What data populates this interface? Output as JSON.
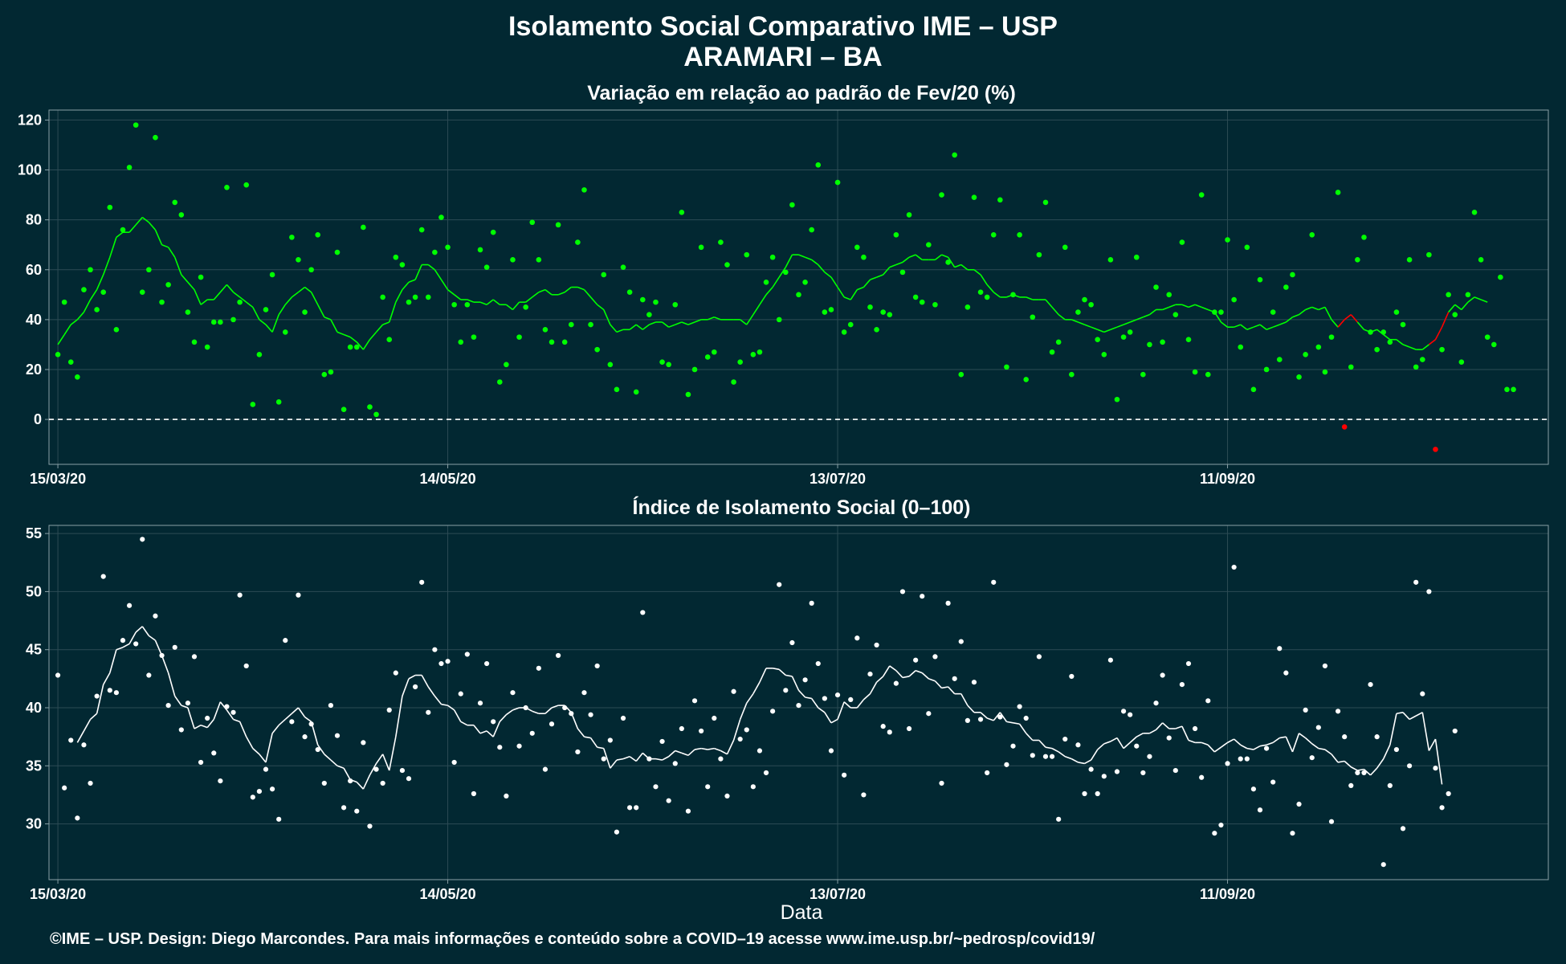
{
  "header": {
    "title": "Isolamento Social Comparativo IME – USP",
    "location": "ARAMARI – BA"
  },
  "footer": {
    "xlabel": "Data",
    "caption": "©IME – USP. Design: Diego Marcondes. Para mais informações e conteúdo sobre a COVID–19 acesse www.ime.usp.br/~pedrosp/covid19/"
  },
  "colors": {
    "background": "#022832",
    "variation_points": "#00ff00",
    "variation_negative": "#ff0000",
    "index_points": "#ffffff",
    "grid": "#2c4b54",
    "frame": "#8aa0a6"
  },
  "chart_data": [
    {
      "type": "scatter",
      "title": "Variação em relação ao padrão de Fev/20 (%)",
      "x_start": "2020-03-15",
      "x_end": "2020-10-29",
      "xticks": [
        "15/03/20",
        "14/05/20",
        "13/07/20",
        "11/09/20"
      ],
      "yticks": [
        0,
        20,
        40,
        60,
        80,
        100,
        120
      ],
      "ylim": [
        -18,
        124
      ],
      "reference_line": 0,
      "grid": true,
      "series": [
        {
          "values": [
            26,
            47,
            23,
            17,
            52,
            60,
            44,
            51,
            85,
            36,
            76,
            101,
            118,
            51,
            60,
            113,
            47,
            54,
            87,
            82,
            43,
            31,
            57,
            29,
            39,
            39,
            93,
            40,
            47,
            94,
            6,
            26,
            44,
            58,
            7,
            35,
            73,
            64,
            43,
            60,
            74,
            18,
            19,
            67,
            4,
            29,
            29,
            77,
            5,
            2,
            49,
            32,
            65,
            62,
            47,
            49,
            76,
            49,
            67,
            81,
            69,
            46,
            31,
            46,
            33,
            68,
            61,
            75,
            15,
            22,
            64,
            33,
            45,
            79,
            64,
            36,
            31,
            78,
            31,
            38,
            71,
            92,
            38,
            28,
            58,
            22,
            12,
            61,
            51,
            11,
            48,
            42,
            47,
            23,
            22,
            46,
            83,
            10,
            20,
            69,
            25,
            27,
            71,
            62,
            15,
            23,
            66,
            26,
            27,
            55,
            65,
            40,
            59,
            86,
            50,
            55,
            76,
            102,
            43,
            44,
            95,
            35,
            38,
            69,
            65,
            45,
            36,
            43,
            42,
            74,
            59,
            82,
            49,
            47,
            70,
            46,
            90,
            63,
            106,
            18,
            45,
            89,
            51,
            49,
            74,
            88,
            21,
            50,
            74,
            16,
            41,
            66,
            87,
            27,
            31,
            69,
            18,
            43,
            48,
            46,
            32,
            26,
            64,
            8,
            33,
            35,
            65,
            18,
            30,
            53,
            31,
            50,
            42,
            71,
            32,
            19,
            90,
            18,
            43,
            43,
            72,
            48,
            29,
            69,
            12,
            56,
            20,
            43,
            24,
            53,
            58,
            17,
            26,
            74,
            29,
            19,
            33,
            91,
            -3,
            21,
            64,
            73,
            35,
            28,
            35,
            31,
            43,
            38,
            64,
            21,
            24,
            66,
            -12,
            28,
            50,
            42,
            23,
            50,
            83,
            64,
            33,
            30,
            57,
            12
          ],
          "moving_average": [
            30,
            34,
            38,
            40,
            43,
            48,
            52,
            58,
            65,
            73,
            75,
            75,
            78,
            81,
            79,
            76,
            70,
            69,
            65,
            58,
            55,
            52,
            46,
            48,
            48,
            51,
            54,
            51,
            49,
            47,
            45,
            40,
            38,
            35,
            42,
            46,
            49,
            51,
            53,
            51,
            46,
            41,
            40,
            35,
            34,
            33,
            31,
            28,
            32,
            35,
            38,
            39,
            47,
            52,
            55,
            56,
            62,
            62,
            60,
            56,
            52,
            50,
            48,
            48,
            47,
            47,
            46,
            48,
            46,
            46,
            44,
            47,
            47,
            49,
            51,
            52,
            50,
            50,
            51,
            53,
            53,
            52,
            49,
            46,
            44,
            38,
            35,
            36,
            36,
            38,
            36,
            38,
            39,
            39,
            37,
            38,
            39,
            38,
            39,
            40,
            40,
            41,
            40,
            40,
            40,
            40,
            38,
            42,
            46,
            50,
            53,
            57,
            61,
            66,
            66,
            65,
            64,
            62,
            59,
            57,
            53,
            49,
            48,
            52,
            53,
            56,
            57,
            58,
            61,
            62,
            63,
            65,
            66,
            64,
            64,
            64,
            66,
            65,
            61,
            62,
            60,
            60,
            58,
            54,
            51,
            49,
            49,
            50,
            49,
            49,
            48,
            48,
            48,
            45,
            42,
            40,
            40,
            39,
            38,
            37,
            36,
            35,
            36,
            37,
            38,
            39,
            40,
            41,
            42,
            44,
            44,
            45,
            46,
            46,
            45,
            46,
            45,
            44,
            43,
            39,
            37,
            37,
            38,
            36,
            37,
            38,
            36,
            37,
            38,
            39,
            41,
            42,
            44,
            45,
            44,
            45,
            40,
            37,
            40,
            42,
            39,
            36,
            35,
            36,
            34,
            32,
            32,
            30,
            29,
            28,
            28,
            30,
            32,
            37,
            43,
            46,
            44,
            47,
            49,
            48,
            47
          ],
          "last_value": 12
        }
      ]
    },
    {
      "type": "scatter",
      "title": "Índice de Isolamento Social (0–100)",
      "x_start": "2020-03-15",
      "x_end": "2020-10-29",
      "xticks": [
        "15/03/20",
        "14/05/20",
        "13/07/20",
        "11/09/20"
      ],
      "yticks": [
        30,
        35,
        40,
        45,
        50,
        55
      ],
      "ylim": [
        25.2,
        55.7
      ],
      "grid": true,
      "series": [
        {
          "values": [
            42.8,
            33.1,
            37.2,
            30.5,
            36.8,
            33.5,
            41,
            51.3,
            41.5,
            41.3,
            45.8,
            48.8,
            45.5,
            54.5,
            42.8,
            47.9,
            44.5,
            40.2,
            45.2,
            38.1,
            40.4,
            44.4,
            35.3,
            39.1,
            36.1,
            33.7,
            40.1,
            39.6,
            49.7,
            43.6,
            32.3,
            32.8,
            34.7,
            33,
            30.4,
            45.8,
            38.8,
            49.7,
            37.5,
            38.6,
            36.4,
            33.5,
            40.2,
            37.6,
            31.4,
            33.7,
            31.1,
            37,
            29.8,
            34.7,
            33.5,
            39.8,
            43,
            34.6,
            33.9,
            41.8,
            50.8,
            39.6,
            45,
            43.8,
            44,
            35.3,
            41.2,
            44.6,
            32.6,
            40.4,
            43.8,
            38.8,
            36.6,
            32.4,
            41.3,
            36.7,
            40,
            37.8,
            43.4,
            34.7,
            38.6,
            44.5,
            40,
            39.5,
            36.2,
            41.3,
            39.4,
            43.6,
            35.6,
            37.2,
            29.3,
            39.1,
            31.4,
            31.4,
            48.2,
            35.6,
            33.2,
            37.1,
            32,
            35.2,
            38.2,
            31.1,
            40.6,
            38,
            33.2,
            39.1,
            35.6,
            32.4,
            41.4,
            37.3,
            38.1,
            33.2,
            36.3,
            34.4,
            39.7,
            50.6,
            41.5,
            45.6,
            40.2,
            42.4,
            49,
            43.8,
            40.8,
            36.3,
            41.1,
            34.2,
            40.7,
            46,
            32.5,
            42.9,
            45.4,
            38.4,
            37.9,
            42.1,
            50,
            38.2,
            44.1,
            49.6,
            39.5,
            44.4,
            33.5,
            49,
            42.5,
            45.7,
            38.9,
            42.2,
            39,
            34.4,
            50.8,
            39.2,
            35.1,
            36.7,
            40.1,
            39.1,
            35.9,
            44.4,
            35.8,
            35.8,
            30.4,
            37.3,
            42.7,
            36.8,
            32.6,
            34.7,
            32.6,
            34.1,
            44.1,
            34.5,
            39.7,
            39.4,
            36.7,
            34.4,
            35.8,
            40.4,
            42.8,
            37.4,
            34.6,
            42,
            43.8,
            38.2,
            34,
            40.6,
            29.2,
            29.9,
            35.2,
            52.1,
            35.6,
            35.6,
            33,
            31.2,
            36.5,
            33.6,
            45.1,
            43,
            29.2,
            31.7,
            39.8,
            35.7,
            38.3,
            43.6,
            30.2,
            39.7,
            37.5,
            33.3,
            34.4,
            34.4,
            42,
            37.5,
            26.5,
            33.3,
            36.4,
            29.6,
            35,
            50.8,
            41.2,
            50,
            34.8,
            31.4,
            32.6,
            38
          ],
          "moving_average": [
            null,
            null,
            null,
            37,
            38,
            39,
            39.5,
            42,
            43,
            45,
            45.2,
            45.5,
            46.5,
            47,
            46.2,
            45.8,
            44.5,
            43,
            41,
            40.2,
            40,
            38.2,
            38.5,
            38.3,
            39,
            40.5,
            39.8,
            39,
            38.8,
            37.5,
            36.5,
            36,
            35.3,
            37.8,
            38.5,
            39,
            39.5,
            40,
            39.2,
            38.8,
            36.8,
            36,
            35.5,
            35,
            34.8,
            33.8,
            33.6,
            33,
            34.2,
            35.2,
            36,
            34.6,
            37.5,
            41,
            42.5,
            42.8,
            42.8,
            41.8,
            41,
            40.3,
            40.2,
            39.8,
            38.8,
            38.5,
            38.5,
            37.8,
            38,
            37.5,
            38.8,
            39.4,
            39.8,
            40,
            40,
            39.7,
            39.5,
            39.5,
            40,
            40.2,
            40.2,
            39.6,
            38.2,
            37.5,
            37.4,
            36.6,
            36.5,
            34.8,
            35.5,
            35.6,
            35.8,
            35.4,
            36.1,
            35.6,
            35.6,
            35.5,
            35.8,
            36.3,
            36.1,
            35.9,
            36.4,
            36.5,
            36.4,
            36.5,
            36.3,
            36,
            37.2,
            39,
            40.4,
            41.2,
            42.2,
            43.4,
            43.4,
            43.3,
            42.8,
            42.7,
            41.5,
            40.9,
            40.8,
            40,
            39.6,
            38.7,
            39,
            40.5,
            40,
            40,
            40.7,
            41.2,
            42.2,
            42.7,
            43.6,
            43.2,
            42.6,
            42.7,
            43.2,
            43,
            42.5,
            42.3,
            41.7,
            41.8,
            41.2,
            41.2,
            40.2,
            39.6,
            39.6,
            39.1,
            38.9,
            39.6,
            38.8,
            38.7,
            38.6,
            37.8,
            37.2,
            37.2,
            36.6,
            36.5,
            36.2,
            35.8,
            35.6,
            35.3,
            35.2,
            35.5,
            36.4,
            36.9,
            37.1,
            37.4,
            36.5,
            37,
            37.5,
            37.8,
            37.8,
            38.1,
            38.7,
            38.2,
            38.2,
            38.4,
            37.2,
            37,
            37,
            36.8,
            36.2,
            36.6,
            37,
            37.3,
            36.8,
            36.5,
            36.4,
            36.7,
            36.8,
            37,
            37.4,
            37.5,
            36.2,
            37.8,
            37.4,
            36.9,
            36.5,
            36.4,
            36,
            35.3,
            35.4,
            34.9,
            34.6,
            34.7,
            34.2,
            34.8,
            35.6,
            36.8,
            39.5,
            39.6,
            39,
            39.3,
            39.6,
            36.3,
            37.3,
            33.4
          ]
        }
      ]
    }
  ]
}
